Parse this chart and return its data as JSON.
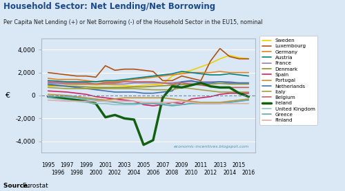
{
  "title": "Household Sector: Net Lending/Net Borrowing",
  "subtitle": "Per Capita Net Lending (+) or Net Borrowing (-) of the Household Sector in the EU15, nominal",
  "ylabel": "€",
  "watermark": "economic-incentives.blogspot.com",
  "background_color": "#dae8f5",
  "years": [
    1995,
    1996,
    1997,
    1998,
    1999,
    2000,
    2001,
    2002,
    2003,
    2004,
    2005,
    2006,
    2007,
    2008,
    2009,
    2010,
    2011,
    2012,
    2013,
    2014,
    2015,
    2016
  ],
  "series": [
    {
      "label": "Sweden",
      "color": "#f0d000",
      "lw": 1.2,
      "data": [
        800,
        850,
        900,
        950,
        950,
        900,
        950,
        900,
        850,
        800,
        900,
        950,
        1000,
        1700,
        2000,
        2200,
        2500,
        2800,
        3200,
        3500,
        3300,
        3200
      ]
    },
    {
      "label": "Luxembourg",
      "color": "#b05010",
      "lw": 1.2,
      "data": [
        2000,
        1900,
        1800,
        1700,
        1700,
        1600,
        2600,
        2200,
        2300,
        2300,
        2200,
        2100,
        1300,
        1300,
        1700,
        1500,
        1300,
        3000,
        4100,
        3400,
        3200,
        3200
      ]
    },
    {
      "label": "Germany",
      "color": "#e08020",
      "lw": 1.2,
      "data": [
        1500,
        1400,
        1400,
        1400,
        1300,
        1200,
        1200,
        1200,
        1300,
        1400,
        1500,
        1600,
        1700,
        1800,
        1900,
        2000,
        2000,
        2000,
        2100,
        2000,
        2000,
        2000
      ]
    },
    {
      "label": "Austria",
      "color": "#008080",
      "lw": 1.2,
      "data": [
        1300,
        1250,
        1200,
        1200,
        1200,
        1200,
        1300,
        1300,
        1400,
        1500,
        1600,
        1700,
        1800,
        1900,
        2100,
        2000,
        1900,
        1800,
        1800,
        1900,
        1800,
        1700
      ]
    },
    {
      "label": "France",
      "color": "#9080c0",
      "lw": 1.2,
      "data": [
        1100,
        1050,
        1000,
        1000,
        1000,
        1000,
        1000,
        1000,
        1000,
        1100,
        1100,
        1100,
        1100,
        1100,
        1200,
        1200,
        1200,
        1200,
        1200,
        1200,
        1100,
        1100
      ]
    },
    {
      "label": "Denmark",
      "color": "#909020",
      "lw": 1.2,
      "data": [
        900,
        850,
        800,
        800,
        750,
        700,
        700,
        700,
        700,
        750,
        750,
        800,
        850,
        900,
        950,
        1000,
        1000,
        1000,
        1050,
        1000,
        1000,
        1000
      ]
    },
    {
      "label": "Spain",
      "color": "#d02060",
      "lw": 1.2,
      "data": [
        400,
        350,
        300,
        200,
        100,
        -100,
        -200,
        -300,
        -400,
        -500,
        -800,
        -900,
        -800,
        -600,
        -700,
        -300,
        -200,
        -100,
        100,
        200,
        200,
        200
      ]
    },
    {
      "label": "Portugal",
      "color": "#c09030",
      "lw": 1.2,
      "data": [
        100,
        50,
        0,
        -100,
        -200,
        -300,
        -400,
        -300,
        -200,
        -200,
        -200,
        -200,
        -200,
        -300,
        -400,
        -500,
        -600,
        -600,
        -600,
        -500,
        -400,
        -300
      ]
    },
    {
      "label": "Netherlands",
      "color": "#4070b0",
      "lw": 1.2,
      "data": [
        1000,
        900,
        800,
        700,
        600,
        500,
        400,
        300,
        300,
        300,
        200,
        200,
        300,
        400,
        1200,
        1300,
        1100,
        1100,
        1200,
        1100,
        1100,
        1100
      ]
    },
    {
      "label": "Italy",
      "color": "#a0a040",
      "lw": 1.2,
      "data": [
        700,
        650,
        600,
        600,
        600,
        600,
        600,
        600,
        600,
        600,
        550,
        500,
        500,
        500,
        700,
        600,
        500,
        400,
        300,
        300,
        300,
        300
      ]
    },
    {
      "label": "Belgium",
      "color": "#c06060",
      "lw": 1.2,
      "data": [
        1200,
        1150,
        1100,
        1100,
        1100,
        1000,
        1100,
        1100,
        1200,
        1200,
        1200,
        1200,
        1100,
        1000,
        1100,
        1000,
        900,
        800,
        700,
        700,
        700,
        700
      ]
    },
    {
      "label": "Ireland",
      "color": "#106010",
      "lw": 2.5,
      "data": [
        -100,
        -200,
        -300,
        -400,
        -500,
        -700,
        -1900,
        -1700,
        -2000,
        -2100,
        -4300,
        -3900,
        -200,
        800,
        700,
        900,
        1100,
        800,
        700,
        700,
        200,
        -100
      ]
    },
    {
      "label": "United Kingdom",
      "color": "#90c0c8",
      "lw": 1.2,
      "data": [
        -200,
        -300,
        -400,
        -500,
        -600,
        -700,
        -700,
        -800,
        -800,
        -800,
        -700,
        -700,
        -700,
        -800,
        -800,
        -700,
        -700,
        -700,
        -700,
        -600,
        -500,
        -400
      ]
    },
    {
      "label": "Greece",
      "color": "#60a8a8",
      "lw": 1.2,
      "data": [
        -100,
        -100,
        -100,
        -200,
        -300,
        -400,
        -500,
        -600,
        -700,
        -700,
        -700,
        -700,
        -800,
        -900,
        -800,
        -700,
        -700,
        -700,
        -700,
        -600,
        -500,
        -400
      ]
    },
    {
      "label": "Finland",
      "color": "#d8b0a8",
      "lw": 1.2,
      "data": [
        -400,
        -450,
        -500,
        -500,
        -500,
        -500,
        -500,
        -500,
        -500,
        -500,
        -600,
        -600,
        -600,
        -600,
        -500,
        -600,
        -700,
        -700,
        -700,
        -700,
        -700,
        -700
      ]
    }
  ],
  "ylim": [
    -5000,
    5000
  ],
  "yticks": [
    -4000,
    -2000,
    0,
    2000,
    4000
  ],
  "xlim": [
    1994.3,
    2016.7
  ],
  "xtick_odd": [
    1995,
    1997,
    1999,
    2001,
    2003,
    2005,
    2007,
    2009,
    2011,
    2013,
    2015
  ],
  "xtick_even": [
    1996,
    1998,
    2000,
    2002,
    2004,
    2006,
    2008,
    2010,
    2012,
    2014,
    2016
  ]
}
